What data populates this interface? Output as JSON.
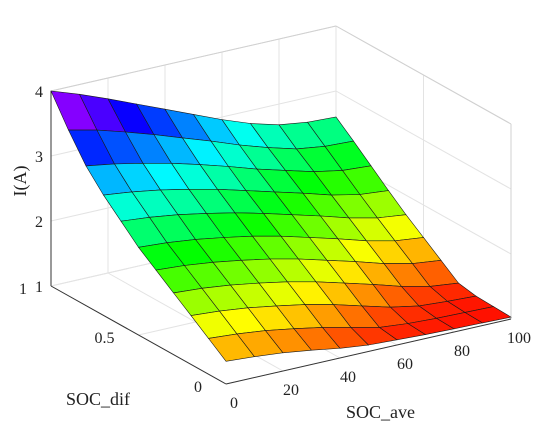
{
  "chart_data": {
    "type": "surface3d",
    "title": "",
    "zlabel": "I(A)",
    "ylabel": "SOC_dif",
    "xlabel": "SOC_ave",
    "xticks": [
      "0",
      "20",
      "40",
      "60",
      "80",
      "100"
    ],
    "yticks": [
      "0",
      "0.5",
      "1"
    ],
    "zticks": [
      "1",
      "2",
      "3",
      "4"
    ],
    "xlim": [
      0,
      100
    ],
    "ylim": [
      0,
      1
    ],
    "zlim": [
      1,
      4
    ],
    "grid": true,
    "colormap": "hsv",
    "x": [
      0,
      10,
      20,
      30,
      40,
      50,
      60,
      70,
      80,
      90,
      100
    ],
    "y": [
      0,
      0.1,
      0.2,
      0.3,
      0.4,
      0.5,
      0.6,
      0.7,
      0.8,
      0.9,
      1.0
    ],
    "note_z": "z[i][j] is current I(A) at y[i] (SOC_dif) and x[j] (SOC_ave)",
    "z": [
      [
        1.35,
        1.32,
        1.28,
        1.22,
        1.15,
        1.1,
        1.08,
        1.06,
        1.05,
        1.04,
        1.03
      ],
      [
        1.55,
        1.52,
        1.47,
        1.4,
        1.32,
        1.22,
        1.12,
        1.08,
        1.06,
        1.05,
        1.04
      ],
      [
        1.75,
        1.72,
        1.67,
        1.6,
        1.52,
        1.42,
        1.3,
        1.18,
        1.1,
        1.07,
        1.05
      ],
      [
        1.95,
        1.92,
        1.87,
        1.8,
        1.72,
        1.62,
        1.5,
        1.38,
        1.25,
        1.15,
        1.1
      ],
      [
        2.15,
        2.12,
        2.07,
        2.0,
        1.92,
        1.82,
        1.7,
        1.58,
        1.45,
        1.35,
        1.3
      ],
      [
        2.35,
        2.32,
        2.27,
        2.2,
        2.12,
        2.02,
        1.9,
        1.78,
        1.65,
        1.55,
        1.5
      ],
      [
        2.6,
        2.56,
        2.5,
        2.42,
        2.33,
        2.22,
        2.1,
        1.98,
        1.85,
        1.75,
        1.7
      ],
      [
        2.85,
        2.8,
        2.73,
        2.64,
        2.54,
        2.42,
        2.3,
        2.18,
        2.05,
        1.96,
        1.92
      ],
      [
        3.15,
        3.08,
        2.99,
        2.89,
        2.77,
        2.64,
        2.5,
        2.38,
        2.26,
        2.18,
        2.15
      ],
      [
        3.55,
        3.45,
        3.32,
        3.18,
        3.03,
        2.88,
        2.72,
        2.58,
        2.46,
        2.4,
        2.38
      ],
      [
        4.0,
        3.85,
        3.68,
        3.5,
        3.32,
        3.14,
        2.96,
        2.8,
        2.68,
        2.62,
        2.6
      ]
    ]
  }
}
